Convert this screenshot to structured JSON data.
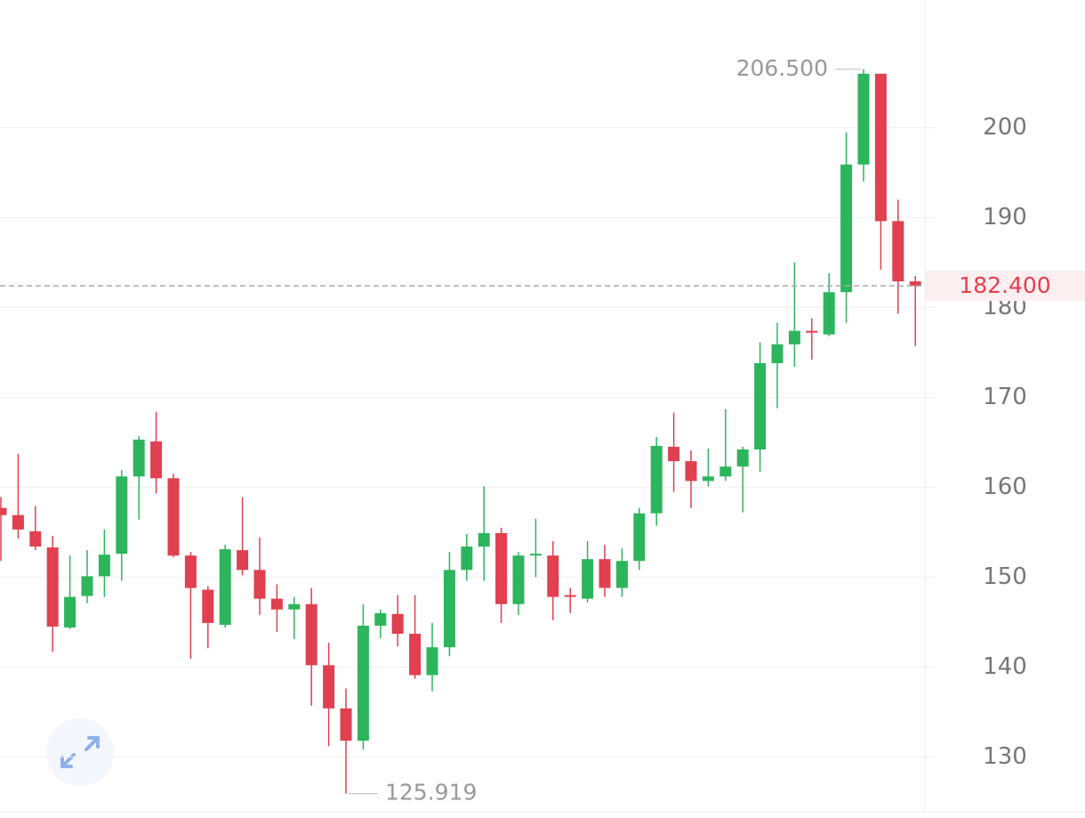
{
  "chart_data": {
    "type": "candlestick",
    "up_color": "#2db55d",
    "down_color": "#e0404f",
    "open": [
      157.7,
      156.9,
      155.1,
      153.3,
      144.4,
      147.9,
      150.1,
      152.6,
      161.2,
      165.1,
      161.0,
      152.4,
      148.6,
      144.7,
      153.0,
      150.8,
      147.6,
      146.4,
      147.0,
      140.2,
      135.4,
      131.8,
      144.6,
      145.9,
      143.7,
      139.1,
      142.2,
      150.8,
      153.4,
      154.9,
      147.0,
      152.4,
      152.4,
      148.0,
      147.6,
      152.0,
      148.8,
      151.8,
      157.1,
      164.5,
      162.9,
      160.7,
      161.2,
      162.3,
      164.2,
      173.8,
      175.9,
      177.4,
      177.0,
      181.7,
      195.9,
      206.0,
      189.6,
      182.9
    ],
    "high": [
      158.9,
      163.7,
      157.9,
      154.6,
      152.4,
      153.0,
      155.3,
      161.9,
      165.7,
      168.4,
      161.5,
      152.8,
      149.0,
      153.6,
      158.9,
      154.4,
      149.2,
      147.8,
      148.8,
      142.7,
      137.6,
      147.0,
      146.4,
      148.0,
      148.0,
      144.9,
      152.8,
      154.8,
      160.1,
      155.5,
      152.8,
      156.5,
      154.0,
      148.8,
      154.0,
      153.6,
      153.2,
      157.7,
      165.6,
      168.3,
      164.1,
      164.3,
      168.7,
      164.5,
      176.1,
      178.3,
      185.0,
      178.8,
      183.8,
      199.5,
      206.5,
      206.0,
      192.0,
      183.5
    ],
    "low": [
      151.8,
      154.3,
      153.0,
      141.7,
      144.2,
      147.1,
      147.8,
      149.6,
      156.4,
      159.3,
      152.2,
      140.9,
      142.1,
      144.4,
      150.2,
      145.8,
      143.9,
      143.1,
      135.7,
      131.2,
      125.919,
      130.8,
      143.2,
      142.3,
      138.7,
      137.3,
      141.2,
      149.6,
      149.6,
      144.9,
      145.8,
      150.0,
      145.2,
      146.0,
      147.2,
      147.8,
      147.8,
      150.8,
      155.7,
      159.5,
      157.7,
      160.1,
      160.7,
      157.2,
      161.7,
      168.8,
      173.4,
      174.2,
      176.8,
      178.3,
      194.0,
      184.2,
      179.3,
      175.7
    ],
    "close": [
      156.9,
      155.3,
      153.4,
      144.5,
      147.8,
      150.1,
      152.5,
      161.2,
      165.3,
      161.0,
      152.4,
      148.8,
      144.9,
      153.1,
      150.8,
      147.6,
      146.4,
      147.0,
      140.2,
      135.4,
      131.8,
      144.6,
      146.0,
      143.7,
      139.1,
      142.2,
      150.8,
      153.4,
      154.9,
      147.0,
      152.4,
      152.6,
      147.8,
      147.8,
      152.0,
      148.8,
      151.8,
      157.1,
      164.6,
      162.9,
      160.7,
      161.2,
      162.3,
      164.2,
      173.8,
      175.9,
      177.4,
      177.2,
      181.7,
      195.9,
      206.0,
      189.6,
      182.9,
      182.4
    ],
    "ylim": [
      123.9,
      214.2
    ],
    "yticks": [
      130,
      140,
      150,
      160,
      170,
      180,
      190,
      200
    ],
    "grid": true,
    "max_marker": {
      "value": 206.5,
      "label": "206.500"
    },
    "min_marker": {
      "value": 125.919,
      "label": "125.919"
    },
    "last_price": {
      "value": 182.4,
      "label": "182.400"
    }
  }
}
